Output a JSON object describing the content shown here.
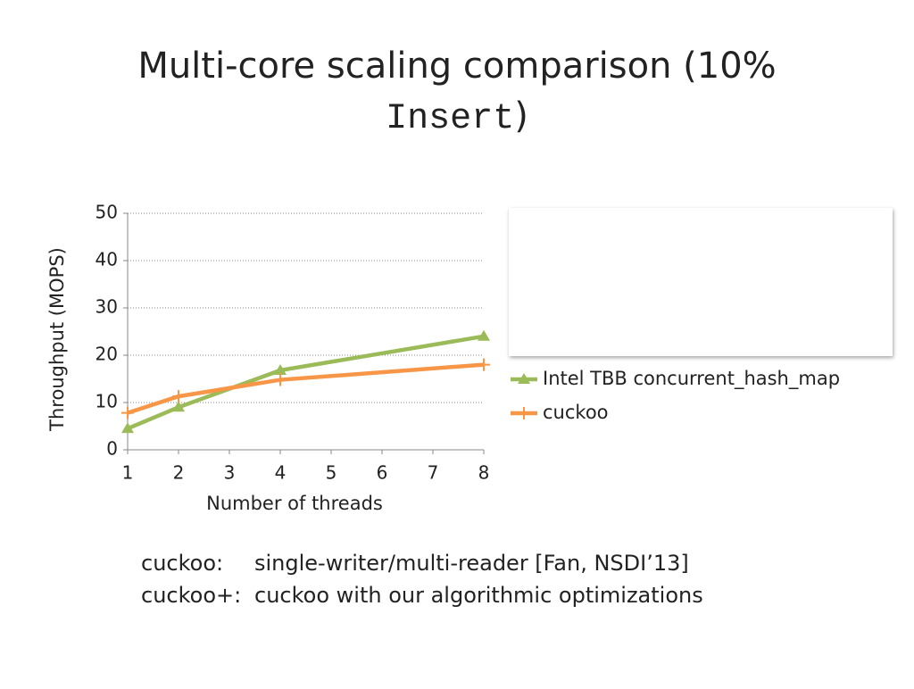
{
  "slide": {
    "title": {
      "text": "Multi-core scaling comparison (10%",
      "code": "Insert",
      "close": ")"
    },
    "notes": [
      {
        "label": "cuckoo:",
        "text": "single-writer/multi-reader [Fan, NSDI’13]"
      },
      {
        "label": "cuckoo+:",
        "text": "cuckoo with our algorithmic optimizations"
      }
    ]
  },
  "chart_data": {
    "type": "line",
    "x_label": "Number of threads",
    "y_label": "Throughput (MOPS)",
    "x": [
      1,
      2,
      4,
      8
    ],
    "series": [
      {
        "name": "Intel TBB concurrent_hash_map",
        "color": "#9bbb59",
        "marker": "triangle",
        "values": [
          4.5,
          9,
          16.8,
          24
        ]
      },
      {
        "name": "cuckoo",
        "color": "#f79646",
        "marker": "plus",
        "values": [
          7.8,
          11.3,
          14.8,
          18
        ]
      }
    ],
    "xlim": [
      1,
      8
    ],
    "xticks": [
      1,
      2,
      3,
      4,
      5,
      6,
      7,
      8
    ],
    "ylim": [
      0,
      50
    ],
    "yticks": [
      0,
      10,
      20,
      30,
      40,
      50
    ],
    "grid": true,
    "legend": "right"
  }
}
